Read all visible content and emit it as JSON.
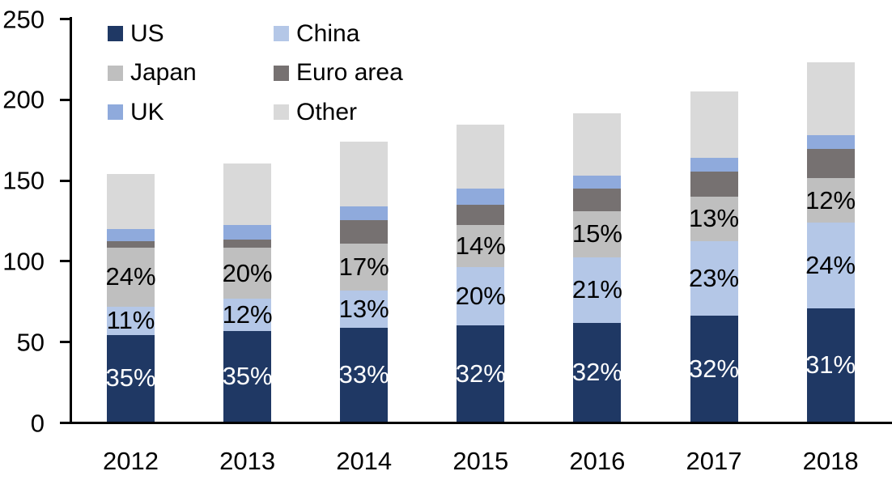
{
  "chart_data": {
    "type": "bar",
    "stacked": true,
    "title": "",
    "xlabel": "",
    "ylabel": "",
    "categories": [
      "2012",
      "2013",
      "2014",
      "2015",
      "2016",
      "2017",
      "2018"
    ],
    "series": [
      {
        "name": "US",
        "color": "#1F3864",
        "label_color": "#FFFFFF",
        "values": [
          53.8,
          56.3,
          57.9,
          59.6,
          61.3,
          65.4,
          69.9
        ],
        "labels": [
          "35%",
          "35%",
          "33%",
          "32%",
          "32%",
          "32%",
          "31%"
        ]
      },
      {
        "name": "China",
        "color": "#B4C7E7",
        "label_color": "#000000",
        "values": [
          17.5,
          19.8,
          23.3,
          36.0,
          40.6,
          46.5,
          53.1
        ],
        "labels": [
          "11%",
          "12%",
          "13%",
          "20%",
          "21%",
          "23%",
          "24%"
        ]
      },
      {
        "name": "Japan",
        "color": "#BFBFBF",
        "label_color": "#000000",
        "values": [
          36.6,
          31.6,
          28.8,
          26.3,
          28.2,
          27.4,
          27.6
        ],
        "labels": [
          "24%",
          "20%",
          "17%",
          "14%",
          "15%",
          "13%",
          "12%"
        ]
      },
      {
        "name": "Euro area",
        "color": "#767171",
        "label_color": null,
        "values": [
          4.0,
          5.0,
          14.9,
          12.4,
          14.2,
          15.7,
          18.0
        ],
        "labels": null
      },
      {
        "name": "UK",
        "color": "#8FAADC",
        "label_color": null,
        "values": [
          7.4,
          9.2,
          8.2,
          10.0,
          8.2,
          8.3,
          8.6
        ],
        "labels": null
      },
      {
        "name": "Other",
        "color": "#D9D9D9",
        "label_color": null,
        "values": [
          34.2,
          38.1,
          40.2,
          39.5,
          38.6,
          41.0,
          45.4
        ],
        "labels": null
      }
    ],
    "totals": [
      153.5,
      160.0,
      173.3,
      183.8,
      191.1,
      204.3,
      222.6
    ],
    "y_axis": {
      "min": 0,
      "max": 250,
      "ticks": [
        0,
        50,
        100,
        150,
        200,
        250
      ]
    },
    "grid": false,
    "legend_position": "top-left-inside",
    "legend_rows": [
      [
        "US",
        "China"
      ],
      [
        "Japan",
        "Euro area"
      ],
      [
        "UK",
        "Other"
      ]
    ],
    "axis_color": "#000000",
    "background_color": "#FFFFFF"
  }
}
